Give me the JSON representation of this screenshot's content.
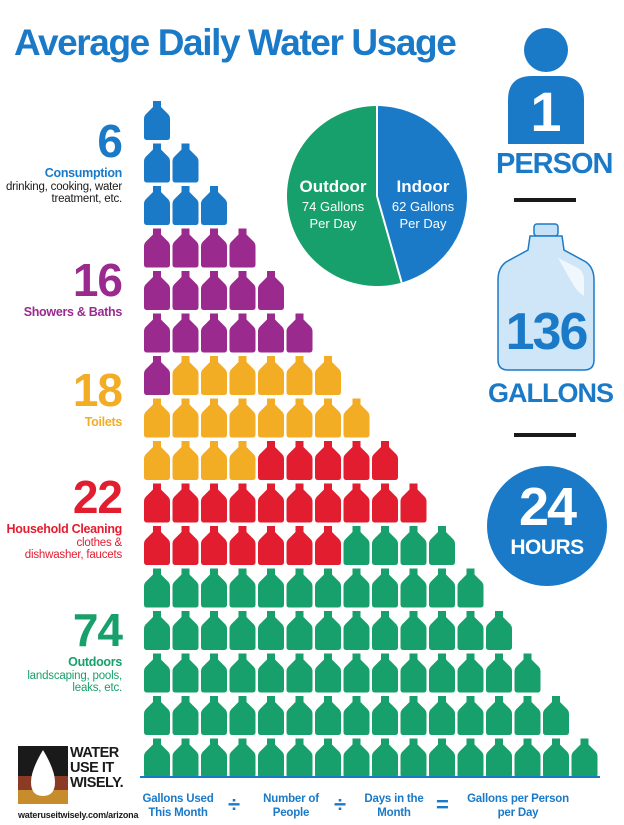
{
  "title": "Average Daily Water Usage",
  "chart_data": {
    "type": "pictograph",
    "unit": "gallon",
    "categories": [
      {
        "value": 6,
        "name": "Consumption",
        "description": "drinking, cooking, water treatment, etc.",
        "color": "#1a7ac8"
      },
      {
        "value": 16,
        "name": "Showers & Baths",
        "description": "",
        "color": "#9a2a8e"
      },
      {
        "value": 18,
        "name": "Toilets",
        "description": "",
        "color": "#f2ad25"
      },
      {
        "value": 22,
        "name": "Household Cleaning",
        "description": "clothes & dishwasher, faucets",
        "color": "#e21d2f"
      },
      {
        "value": 74,
        "name": "Outdoors",
        "description": "landscaping, pools, leaks, etc.",
        "color": "#17a06b"
      }
    ],
    "pie": {
      "type": "pie",
      "slices": [
        {
          "label": "Outdoor",
          "detail": "74 Gallons Per Day",
          "value": 74,
          "color": "#17a06b"
        },
        {
          "label": "Indoor",
          "detail": "62 Gallons Per Day",
          "value": 62,
          "color": "#1a7ac8"
        }
      ]
    }
  },
  "summary": {
    "person_count": "1",
    "person_label": "PERSON",
    "gallons": "136",
    "gallons_label": "GALLONS",
    "hours": "24",
    "hours_label": "HOURS"
  },
  "logo": {
    "line1": "WATER",
    "line2": "USE IT",
    "line3": "WISELY.",
    "url": "wateruseitwisely.com/arizona"
  },
  "formula": {
    "term1": "Gallons Used This Month",
    "op1": "÷",
    "term2": "Number of People",
    "op2": "÷",
    "term3": "Days in the Month",
    "op3": "=",
    "term4": "Gallons per Person per Day"
  },
  "colors": {
    "blue": "#1a7ac8",
    "purple": "#9a2a8e",
    "yellow": "#f2ad25",
    "red": "#e21d2f",
    "green": "#17a06b"
  }
}
